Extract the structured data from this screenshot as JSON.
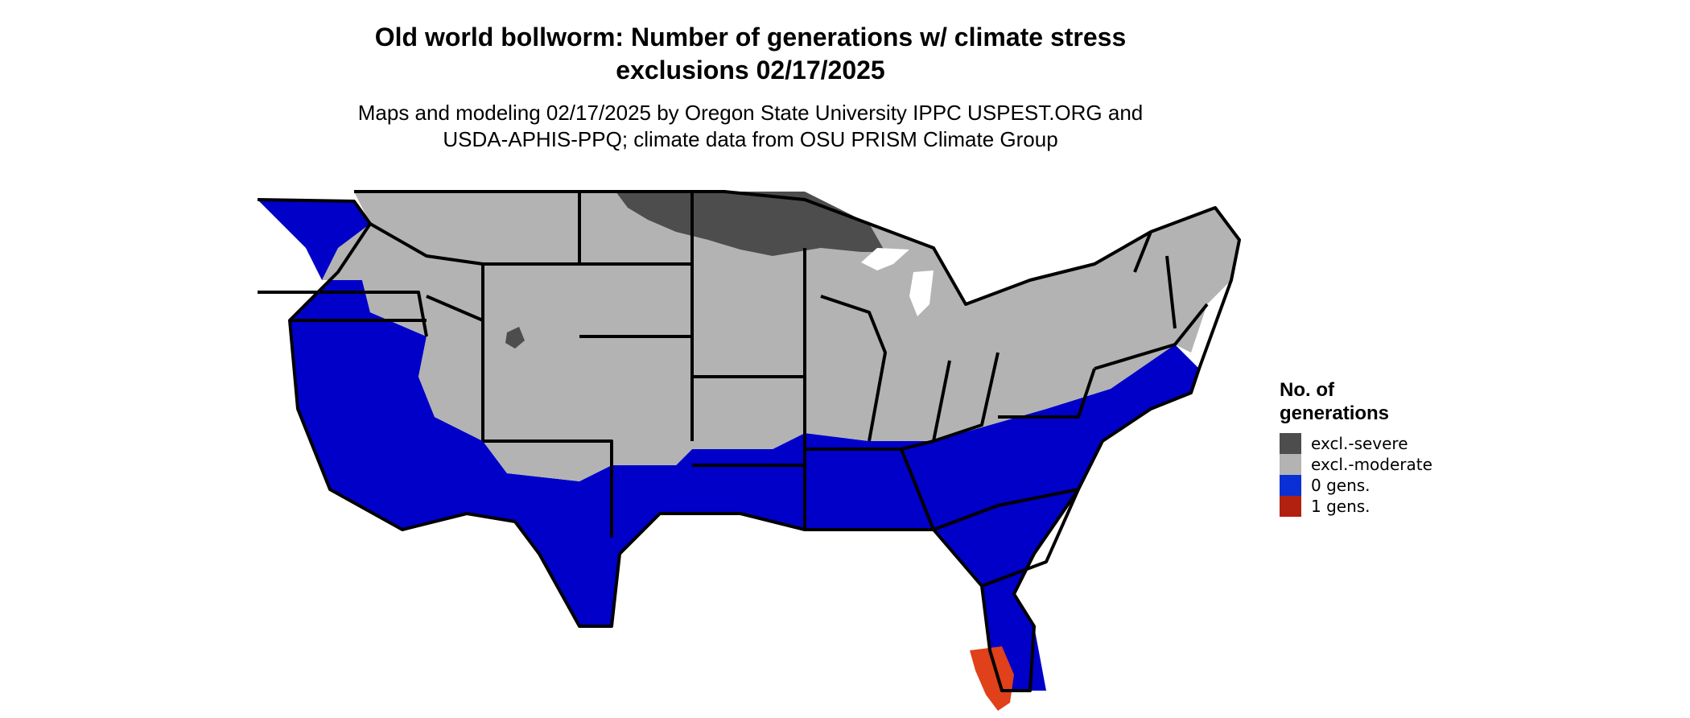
{
  "title": {
    "line1": "Old world bollworm: Number of generations w/ climate stress",
    "line2": "exclusions 02/17/2025"
  },
  "subtitle": {
    "line1": "Maps and modeling 02/17/2025 by Oregon State University IPPC USPEST.ORG and",
    "line2": "USDA-APHIS-PPQ; climate data from OSU PRISM Climate Group"
  },
  "legend": {
    "title_line1": "No. of",
    "title_line2": "generations",
    "items": [
      {
        "label": "excl.-severe",
        "color": "#4d4d4d"
      },
      {
        "label": "excl.-moderate",
        "color": "#b3b3b3"
      },
      {
        "label": "0 gens.",
        "color": "#0a2fd4"
      },
      {
        "label": "1 gens.",
        "color": "#b22010"
      }
    ]
  },
  "colors": {
    "excl_severe": "#4d4d4d",
    "excl_moderate": "#b3b3b3",
    "zero_gens": "#0000c8",
    "one_gens": "#e0401a",
    "border": "#000000"
  }
}
